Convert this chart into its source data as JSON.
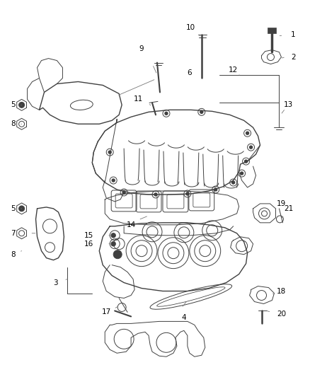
{
  "bg_color": "#ffffff",
  "line_color": "#404040",
  "label_color": "#000000",
  "lw_main": 1.0,
  "lw_thin": 0.7,
  "figsize": [
    4.38,
    5.33
  ],
  "dpi": 100
}
